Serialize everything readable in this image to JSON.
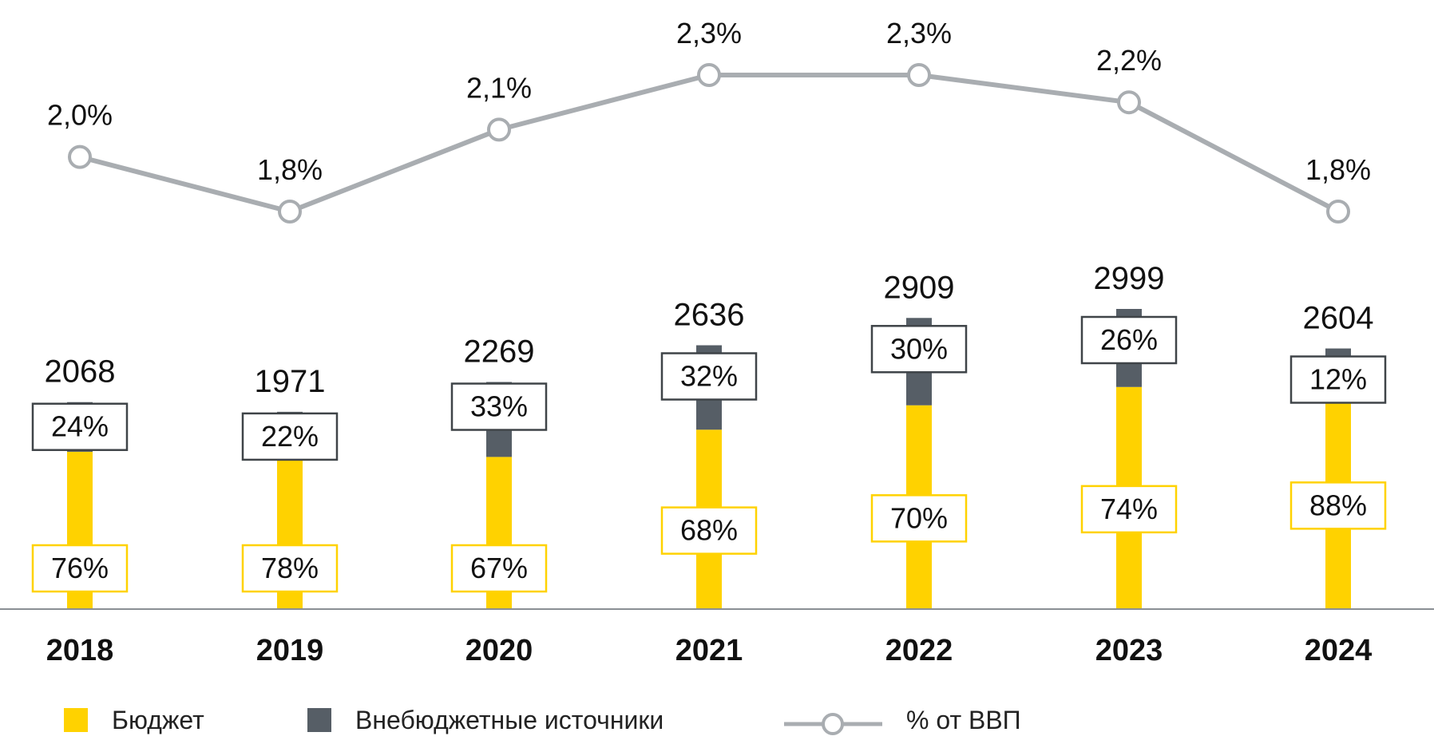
{
  "chart_data": {
    "type": "bar",
    "categories": [
      "2018",
      "2019",
      "2020",
      "2021",
      "2022",
      "2023",
      "2024"
    ],
    "totals": [
      2068,
      1971,
      2269,
      2636,
      2909,
      2999,
      2604
    ],
    "series": [
      {
        "name": "Бюджет",
        "share_values": [
          76,
          78,
          67,
          68,
          70,
          74,
          88
        ],
        "share_labels": [
          "76%",
          "78%",
          "67%",
          "68%",
          "70%",
          "74%",
          "88%"
        ],
        "color": "#FFD200"
      },
      {
        "name": "Внебюджетные источники",
        "share_values": [
          24,
          22,
          33,
          32,
          30,
          26,
          12
        ],
        "share_labels": [
          "24%",
          "22%",
          "33%",
          "32%",
          "30%",
          "26%",
          "12%"
        ],
        "color": "#565E66"
      }
    ],
    "line_series": {
      "name": "% от ВВП",
      "values": [
        2.0,
        1.8,
        2.1,
        2.3,
        2.3,
        2.2,
        1.8
      ],
      "labels": [
        "2,0%",
        "1,8%",
        "2,1%",
        "2,3%",
        "2,3%",
        "2,2%",
        "1,8%"
      ],
      "color": "#A9ADB1"
    },
    "legend_placement": "bottom",
    "grid": false
  }
}
